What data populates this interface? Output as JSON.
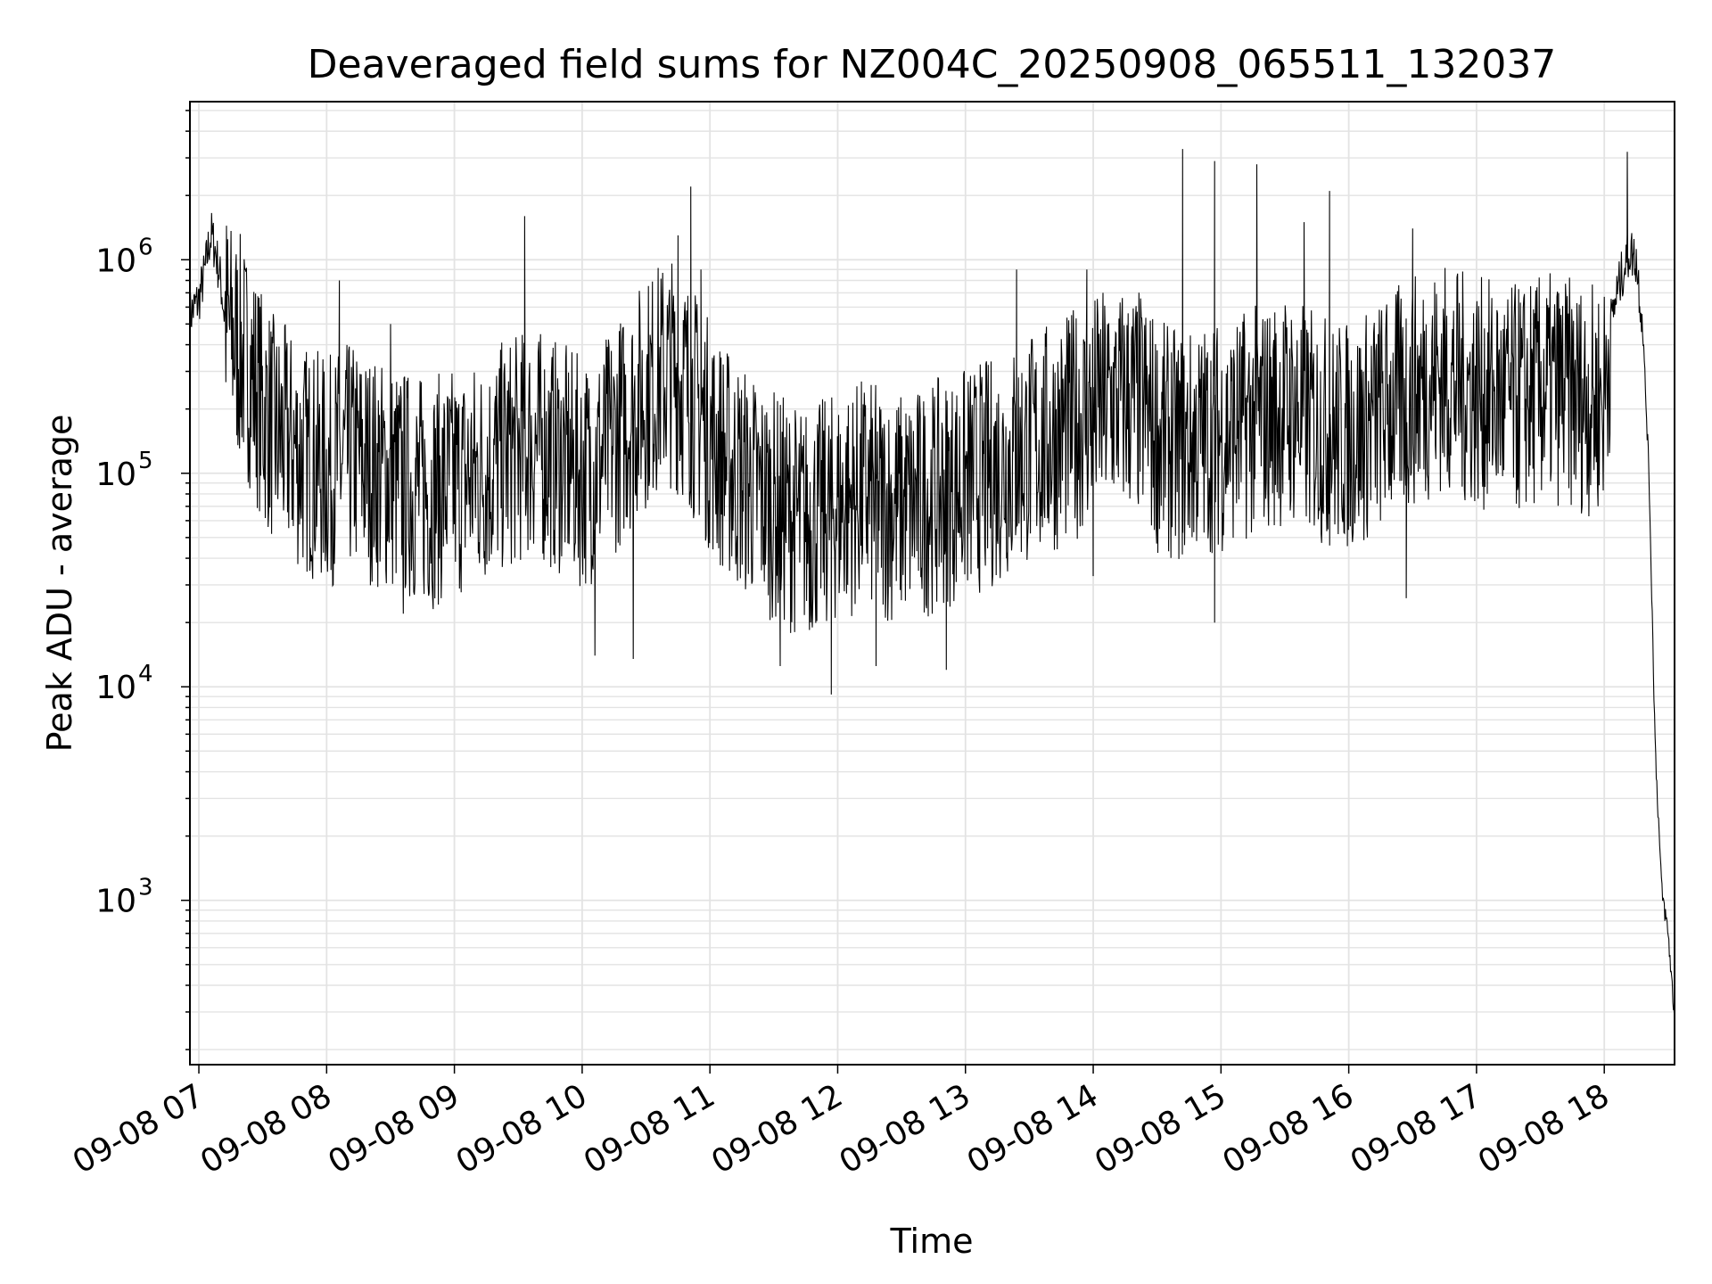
{
  "chart_data": {
    "type": "line",
    "title": "Deaveraged field sums for NZ004C_20250908_065511_132037",
    "xlabel": "Time",
    "ylabel": "Peak ADU - average",
    "y_scale": "log",
    "ylim": [
      170,
      5500000
    ],
    "xlim": [
      "2025-09-08 06:56",
      "2025-09-08 18:32"
    ],
    "grid": true,
    "x_tick_labels": [
      "09-08 07",
      "09-08 08",
      "09-08 09",
      "09-08 10",
      "09-08 11",
      "09-08 12",
      "09-08 13",
      "09-08 14",
      "09-08 15",
      "09-08 16",
      "09-08 17",
      "09-08 18"
    ],
    "x_tick_hours": [
      7,
      8,
      9,
      10,
      11,
      12,
      13,
      14,
      15,
      16,
      17,
      18
    ],
    "y_tick_labels": [
      {
        "base": "10",
        "exp": "3",
        "value": 1000
      },
      {
        "base": "10",
        "exp": "4",
        "value": 10000
      },
      {
        "base": "10",
        "exp": "5",
        "value": 100000
      },
      {
        "base": "10",
        "exp": "6",
        "value": 1000000
      }
    ],
    "series": [
      {
        "color": "#000000",
        "x_hours": [
          6.93,
          7.0,
          7.05,
          7.08,
          7.1,
          7.13,
          7.17,
          7.2,
          7.25,
          7.3,
          7.35,
          7.4,
          7.45,
          7.5,
          7.55,
          7.6,
          7.7,
          7.8,
          7.9,
          8.0,
          8.1,
          8.2,
          8.3,
          8.4,
          8.5,
          8.6,
          8.7,
          8.8,
          8.9,
          9.0,
          9.1,
          9.2,
          9.3,
          9.4,
          9.5,
          9.6,
          9.7,
          9.8,
          9.9,
          10.0,
          10.1,
          10.2,
          10.3,
          10.4,
          10.5,
          10.6,
          10.7,
          10.8,
          10.9,
          11.0,
          11.1,
          11.2,
          11.3,
          11.4,
          11.5,
          11.6,
          11.7,
          11.8,
          11.9,
          12.0,
          12.1,
          12.2,
          12.3,
          12.4,
          12.5,
          12.6,
          12.7,
          12.8,
          12.9,
          13.0,
          13.1,
          13.2,
          13.3,
          13.4,
          13.5,
          13.6,
          13.7,
          13.8,
          13.9,
          14.0,
          14.1,
          14.2,
          14.3,
          14.4,
          14.5,
          14.6,
          14.7,
          14.8,
          14.9,
          15.0,
          15.1,
          15.2,
          15.3,
          15.4,
          15.5,
          15.6,
          15.7,
          15.8,
          15.9,
          16.0,
          16.1,
          16.2,
          16.3,
          16.4,
          16.5,
          16.6,
          16.7,
          16.8,
          16.9,
          17.0,
          17.1,
          17.2,
          17.3,
          17.4,
          17.5,
          17.6,
          17.7,
          17.8,
          17.9,
          18.0,
          18.05,
          18.1,
          18.15,
          18.2,
          18.25,
          18.3,
          18.35,
          18.4,
          18.45,
          18.5,
          18.55
        ],
        "values": [
          550000,
          650000,
          900000,
          1200000,
          1300000,
          1100000,
          800000,
          550000,
          450000,
          400000,
          350000,
          300000,
          250000,
          200000,
          180000,
          150000,
          140000,
          120000,
          110000,
          100000,
          110000,
          120000,
          110000,
          100000,
          95000,
          90000,
          85000,
          80000,
          85000,
          90000,
          95000,
          100000,
          110000,
          120000,
          130000,
          140000,
          130000,
          120000,
          110000,
          100000,
          110000,
          130000,
          160000,
          200000,
          240000,
          280000,
          300000,
          260000,
          200000,
          150000,
          120000,
          100000,
          90000,
          80000,
          70000,
          65000,
          60000,
          60000,
          65000,
          70000,
          75000,
          80000,
          75000,
          70000,
          70000,
          72000,
          75000,
          80000,
          85000,
          90000,
          95000,
          100000,
          110000,
          120000,
          130000,
          140000,
          150000,
          160000,
          180000,
          200000,
          210000,
          220000,
          220000,
          200000,
          150000,
          140000,
          130000,
          140000,
          150000,
          150000,
          160000,
          170000,
          180000,
          190000,
          200000,
          190000,
          170000,
          160000,
          150000,
          150000,
          160000,
          180000,
          200000,
          220000,
          240000,
          260000,
          280000,
          270000,
          250000,
          240000,
          230000,
          220000,
          220000,
          230000,
          240000,
          250000,
          240000,
          230000,
          220000,
          230000,
          500000,
          700000,
          900000,
          1100000,
          1000000,
          500000,
          100000,
          5000,
          1100,
          700,
          280
        ],
        "spikes": [
          {
            "x": 8.1,
            "y": 800000
          },
          {
            "x": 8.5,
            "y": 500000
          },
          {
            "x": 9.55,
            "y": 1600000
          },
          {
            "x": 10.75,
            "y": 1300000
          },
          {
            "x": 10.85,
            "y": 2200000
          },
          {
            "x": 10.93,
            "y": 900000
          },
          {
            "x": 13.4,
            "y": 900000
          },
          {
            "x": 13.95,
            "y": 900000
          },
          {
            "x": 14.7,
            "y": 3300000
          },
          {
            "x": 14.95,
            "y": 2900000
          },
          {
            "x": 15.28,
            "y": 2800000
          },
          {
            "x": 15.85,
            "y": 2100000
          },
          {
            "x": 15.65,
            "y": 1500000
          },
          {
            "x": 16.5,
            "y": 1400000
          },
          {
            "x": 18.18,
            "y": 3200000
          }
        ],
        "dips": [
          {
            "x": 8.6,
            "y": 22000
          },
          {
            "x": 10.1,
            "y": 14000
          },
          {
            "x": 10.4,
            "y": 13500
          },
          {
            "x": 11.55,
            "y": 12500
          },
          {
            "x": 11.95,
            "y": 9200
          },
          {
            "x": 12.3,
            "y": 12500
          },
          {
            "x": 12.85,
            "y": 12000
          },
          {
            "x": 14.0,
            "y": 33000
          },
          {
            "x": 14.95,
            "y": 20000
          },
          {
            "x": 16.45,
            "y": 26000
          }
        ]
      }
    ]
  }
}
